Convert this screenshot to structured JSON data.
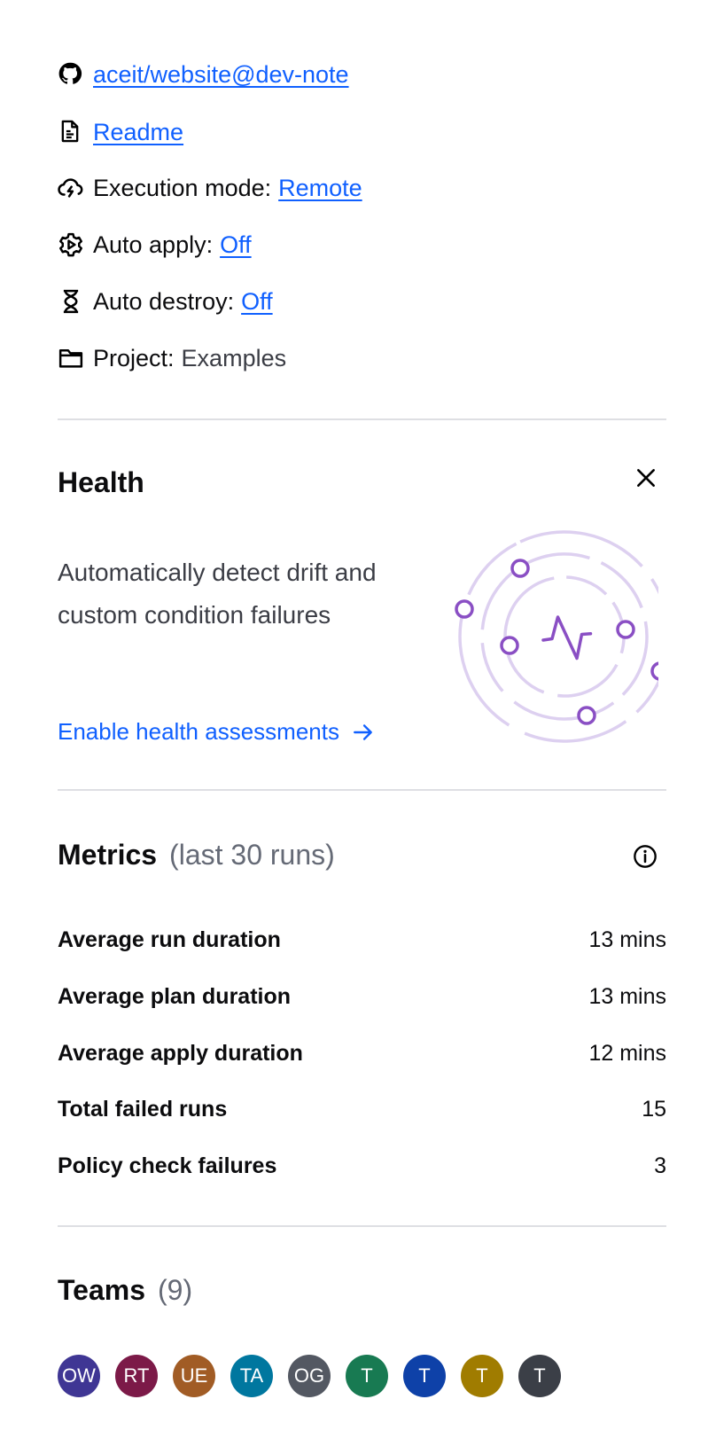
{
  "details": {
    "repo_link": "aceit/website@dev-note",
    "readme_link": "Readme",
    "execution_mode": {
      "label": "Execution mode:",
      "value": "Remote"
    },
    "auto_apply": {
      "label": "Auto apply:",
      "value": "Off"
    },
    "auto_destroy": {
      "label": "Auto destroy:",
      "value": "Off"
    },
    "project": {
      "label": "Project:",
      "value": "Examples"
    }
  },
  "health": {
    "title": "Health",
    "description": "Automatically detect drift and custom condition failures",
    "cta": "Enable health assessments",
    "illustration_color": "#8a4fc4"
  },
  "metrics": {
    "title": "Metrics",
    "subtitle": "(last 30 runs)",
    "rows": [
      {
        "label": "Average run duration",
        "value": "13 mins"
      },
      {
        "label": "Average plan duration",
        "value": "13 mins"
      },
      {
        "label": "Average apply duration",
        "value": "12 mins"
      },
      {
        "label": "Total failed runs",
        "value": "15"
      },
      {
        "label": "Policy check failures",
        "value": "3"
      }
    ]
  },
  "teams": {
    "title": "Teams",
    "count": "(9)",
    "avatars": [
      {
        "initials": "OW",
        "color": "#3f3694"
      },
      {
        "initials": "RT",
        "color": "#7c1a48"
      },
      {
        "initials": "UE",
        "color": "#a15c25"
      },
      {
        "initials": "TA",
        "color": "#00779f"
      },
      {
        "initials": "OG",
        "color": "#535862"
      },
      {
        "initials": "T",
        "color": "#187a52"
      },
      {
        "initials": "T",
        "color": "#0e41a8"
      },
      {
        "initials": "T",
        "color": "#a07c00"
      },
      {
        "initials": "T",
        "color": "#3b3f47"
      }
    ]
  },
  "colors": {
    "link": "#1060ff",
    "muted": "#656a76",
    "divider": "#dedfe3"
  }
}
